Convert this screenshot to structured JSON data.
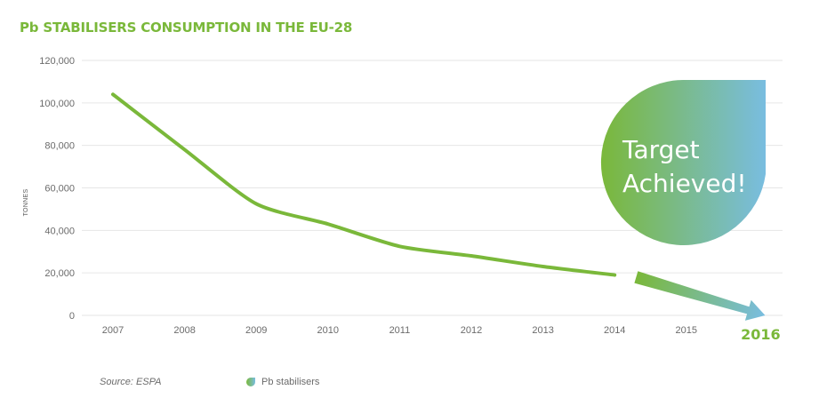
{
  "chart_data": {
    "type": "line",
    "title": "Pb STABILISERS CONSUMPTION IN THE EU-28",
    "ylabel": "TONNES",
    "xlabel": "",
    "ylim": [
      0,
      120000
    ],
    "yticks": [
      0,
      20000,
      40000,
      60000,
      80000,
      100000,
      120000
    ],
    "ytick_labels": [
      "0",
      "20,000",
      "40,000",
      "60,000",
      "80,000",
      "100,000",
      "120,000"
    ],
    "categories": [
      "2007",
      "2008",
      "2009",
      "2010",
      "2011",
      "2012",
      "2013",
      "2014",
      "2015",
      "2016"
    ],
    "highlight_category": "2016",
    "series": [
      {
        "name": "Pb stabilisers",
        "x": [
          2007,
          2008,
          2009,
          2010,
          2011,
          2012,
          2013,
          2014
        ],
        "values": [
          104000,
          78000,
          52500,
          43000,
          32500,
          28000,
          23000,
          19000
        ],
        "color": "#7ab83a"
      }
    ],
    "trend_arrow": {
      "from_x": 2014.3,
      "from_y": 18000,
      "to_x": 2016.1,
      "to_y": 0,
      "color_start": "#7ab83a",
      "color_end": "#79bde0"
    },
    "badge": {
      "lines": [
        "Target",
        "Achieved!"
      ],
      "color_start": "#7ab83a",
      "color_end": "#79bde0"
    },
    "grid": true,
    "legend": {
      "position": "bottom-left",
      "label": "Pb stabilisers"
    },
    "source": "Source: ESPA"
  },
  "colors": {
    "accent_green": "#7ab83a",
    "accent_blue": "#79bde0",
    "grid": "#e6e6e6",
    "axis_text": "#6b6b6b"
  }
}
